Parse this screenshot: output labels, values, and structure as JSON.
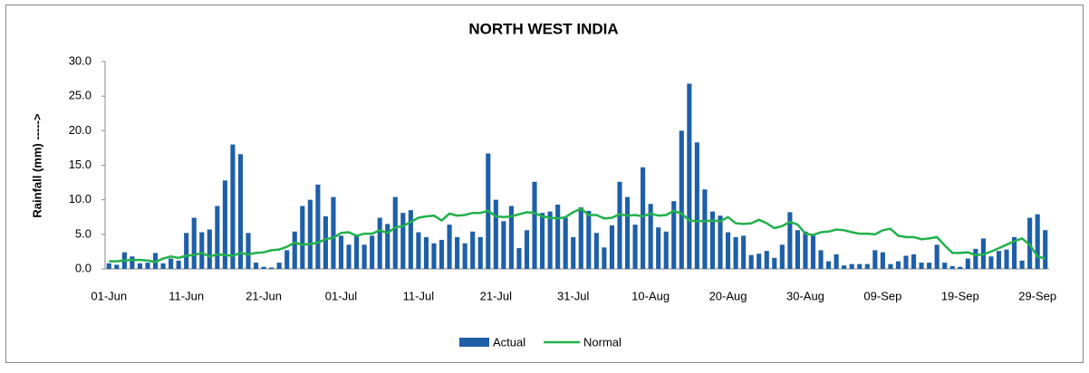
{
  "chart_data": {
    "type": "bar-line",
    "title": "NORTH WEST INDIA",
    "y_label": "Rainfall  (mm) ----->",
    "categories": [
      "01-Jun",
      null,
      null,
      null,
      null,
      null,
      null,
      null,
      null,
      null,
      "11-Jun",
      null,
      null,
      null,
      null,
      null,
      null,
      null,
      null,
      null,
      "21-Jun",
      null,
      null,
      null,
      null,
      null,
      null,
      null,
      null,
      null,
      "01-Jul",
      null,
      null,
      null,
      null,
      null,
      null,
      null,
      null,
      null,
      "11-Jul",
      null,
      null,
      null,
      null,
      null,
      null,
      null,
      null,
      null,
      "21-Jul",
      null,
      null,
      null,
      null,
      null,
      null,
      null,
      null,
      null,
      "31-Jul",
      null,
      null,
      null,
      null,
      null,
      null,
      null,
      null,
      null,
      "10-Aug",
      null,
      null,
      null,
      null,
      null,
      null,
      null,
      null,
      null,
      "20-Aug",
      null,
      null,
      null,
      null,
      null,
      null,
      null,
      null,
      null,
      "30-Aug",
      null,
      null,
      null,
      null,
      null,
      null,
      null,
      null,
      null,
      "09-Sep",
      null,
      null,
      null,
      null,
      null,
      null,
      null,
      null,
      null,
      "19-Sep",
      null,
      null,
      null,
      null,
      null,
      null,
      null,
      null,
      null,
      "29-Sep",
      null
    ],
    "series": [
      {
        "name": "Actual",
        "kind": "bar",
        "color": "#1f5fa8",
        "values": [
          0.8,
          0.6,
          2.4,
          1.8,
          0.8,
          0.9,
          2.3,
          0.8,
          1.5,
          1.2,
          5.2,
          7.4,
          5.3,
          5.7,
          9.1,
          12.8,
          18.0,
          16.6,
          5.2,
          0.9,
          0.3,
          0.2,
          0.9,
          2.7,
          5.4,
          9.1,
          10.0,
          12.2,
          7.6,
          10.4,
          4.8,
          3.5,
          4.8,
          3.5,
          4.8,
          7.4,
          6.5,
          10.4,
          8.1,
          8.5,
          5.3,
          4.6,
          3.7,
          4.2,
          6.4,
          4.6,
          3.7,
          5.4,
          4.6,
          16.7,
          10.0,
          6.9,
          9.1,
          3.0,
          5.6,
          12.6,
          8.1,
          8.3,
          9.3,
          7.4,
          4.6,
          8.9,
          8.4,
          5.2,
          3.1,
          6.3,
          12.6,
          10.4,
          6.4,
          14.7,
          9.4,
          6.0,
          5.4,
          9.8,
          20.0,
          26.8,
          18.3,
          11.5,
          8.3,
          7.7,
          5.3,
          4.6,
          4.8,
          2.0,
          2.2,
          2.6,
          1.6,
          3.5,
          8.2,
          5.6,
          5.4,
          4.8,
          2.7,
          1.1,
          2.1,
          0.5,
          0.7,
          0.7,
          0.7,
          2.7,
          2.4,
          0.7,
          1.1,
          1.9,
          2.1,
          0.9,
          0.9,
          3.5,
          0.9,
          0.4,
          0.3,
          1.5,
          2.9,
          4.4,
          1.8,
          2.6,
          2.8,
          4.6,
          1.2,
          7.4,
          7.9,
          5.6
        ]
      },
      {
        "name": "Normal",
        "kind": "line",
        "color": "#22b14c",
        "values": [
          1.1,
          1.1,
          1.2,
          1.3,
          1.3,
          1.2,
          1.0,
          1.5,
          1.8,
          1.6,
          1.9,
          2.0,
          2.3,
          1.8,
          2.1,
          2.0,
          1.9,
          2.3,
          2.1,
          2.3,
          2.4,
          2.7,
          2.8,
          3.2,
          3.8,
          3.5,
          3.6,
          3.8,
          4.3,
          4.5,
          5.2,
          5.3,
          4.8,
          5.1,
          5.1,
          5.6,
          5.2,
          6.0,
          6.2,
          6.8,
          7.4,
          7.6,
          7.7,
          7.0,
          8.0,
          7.7,
          7.8,
          8.1,
          8.1,
          8.4,
          7.6,
          7.5,
          7.6,
          7.9,
          8.2,
          8.1,
          7.6,
          7.4,
          7.3,
          7.5,
          8.2,
          8.7,
          7.8,
          7.8,
          7.3,
          7.4,
          7.9,
          7.7,
          7.8,
          7.6,
          8.0,
          7.7,
          7.8,
          8.4,
          8.0,
          7.0,
          6.9,
          6.9,
          7.0,
          6.9,
          7.5,
          6.6,
          6.5,
          6.6,
          7.1,
          6.6,
          5.9,
          6.2,
          6.8,
          6.4,
          5.1,
          4.9,
          5.3,
          5.4,
          5.7,
          5.6,
          5.3,
          5.1,
          5.1,
          5.0,
          5.6,
          5.8,
          4.8,
          4.6,
          4.6,
          4.3,
          4.4,
          4.6,
          3.4,
          2.3,
          2.3,
          2.4,
          2.0,
          2.1,
          2.5,
          3.0,
          3.5,
          4.0,
          4.4,
          3.5,
          1.8,
          1.5
        ]
      }
    ],
    "ylim": [
      0,
      30
    ],
    "yticks": [
      {
        "value": 0,
        "label": "0.0"
      },
      {
        "value": 5,
        "label": "5.0"
      },
      {
        "value": 10,
        "label": "10.0"
      },
      {
        "value": 15,
        "label": "15.0"
      },
      {
        "value": 20,
        "label": "20.0"
      },
      {
        "value": 25,
        "label": "25.0"
      },
      {
        "value": 30,
        "label": "30.0"
      }
    ],
    "grid": false,
    "legend": "bottom"
  }
}
